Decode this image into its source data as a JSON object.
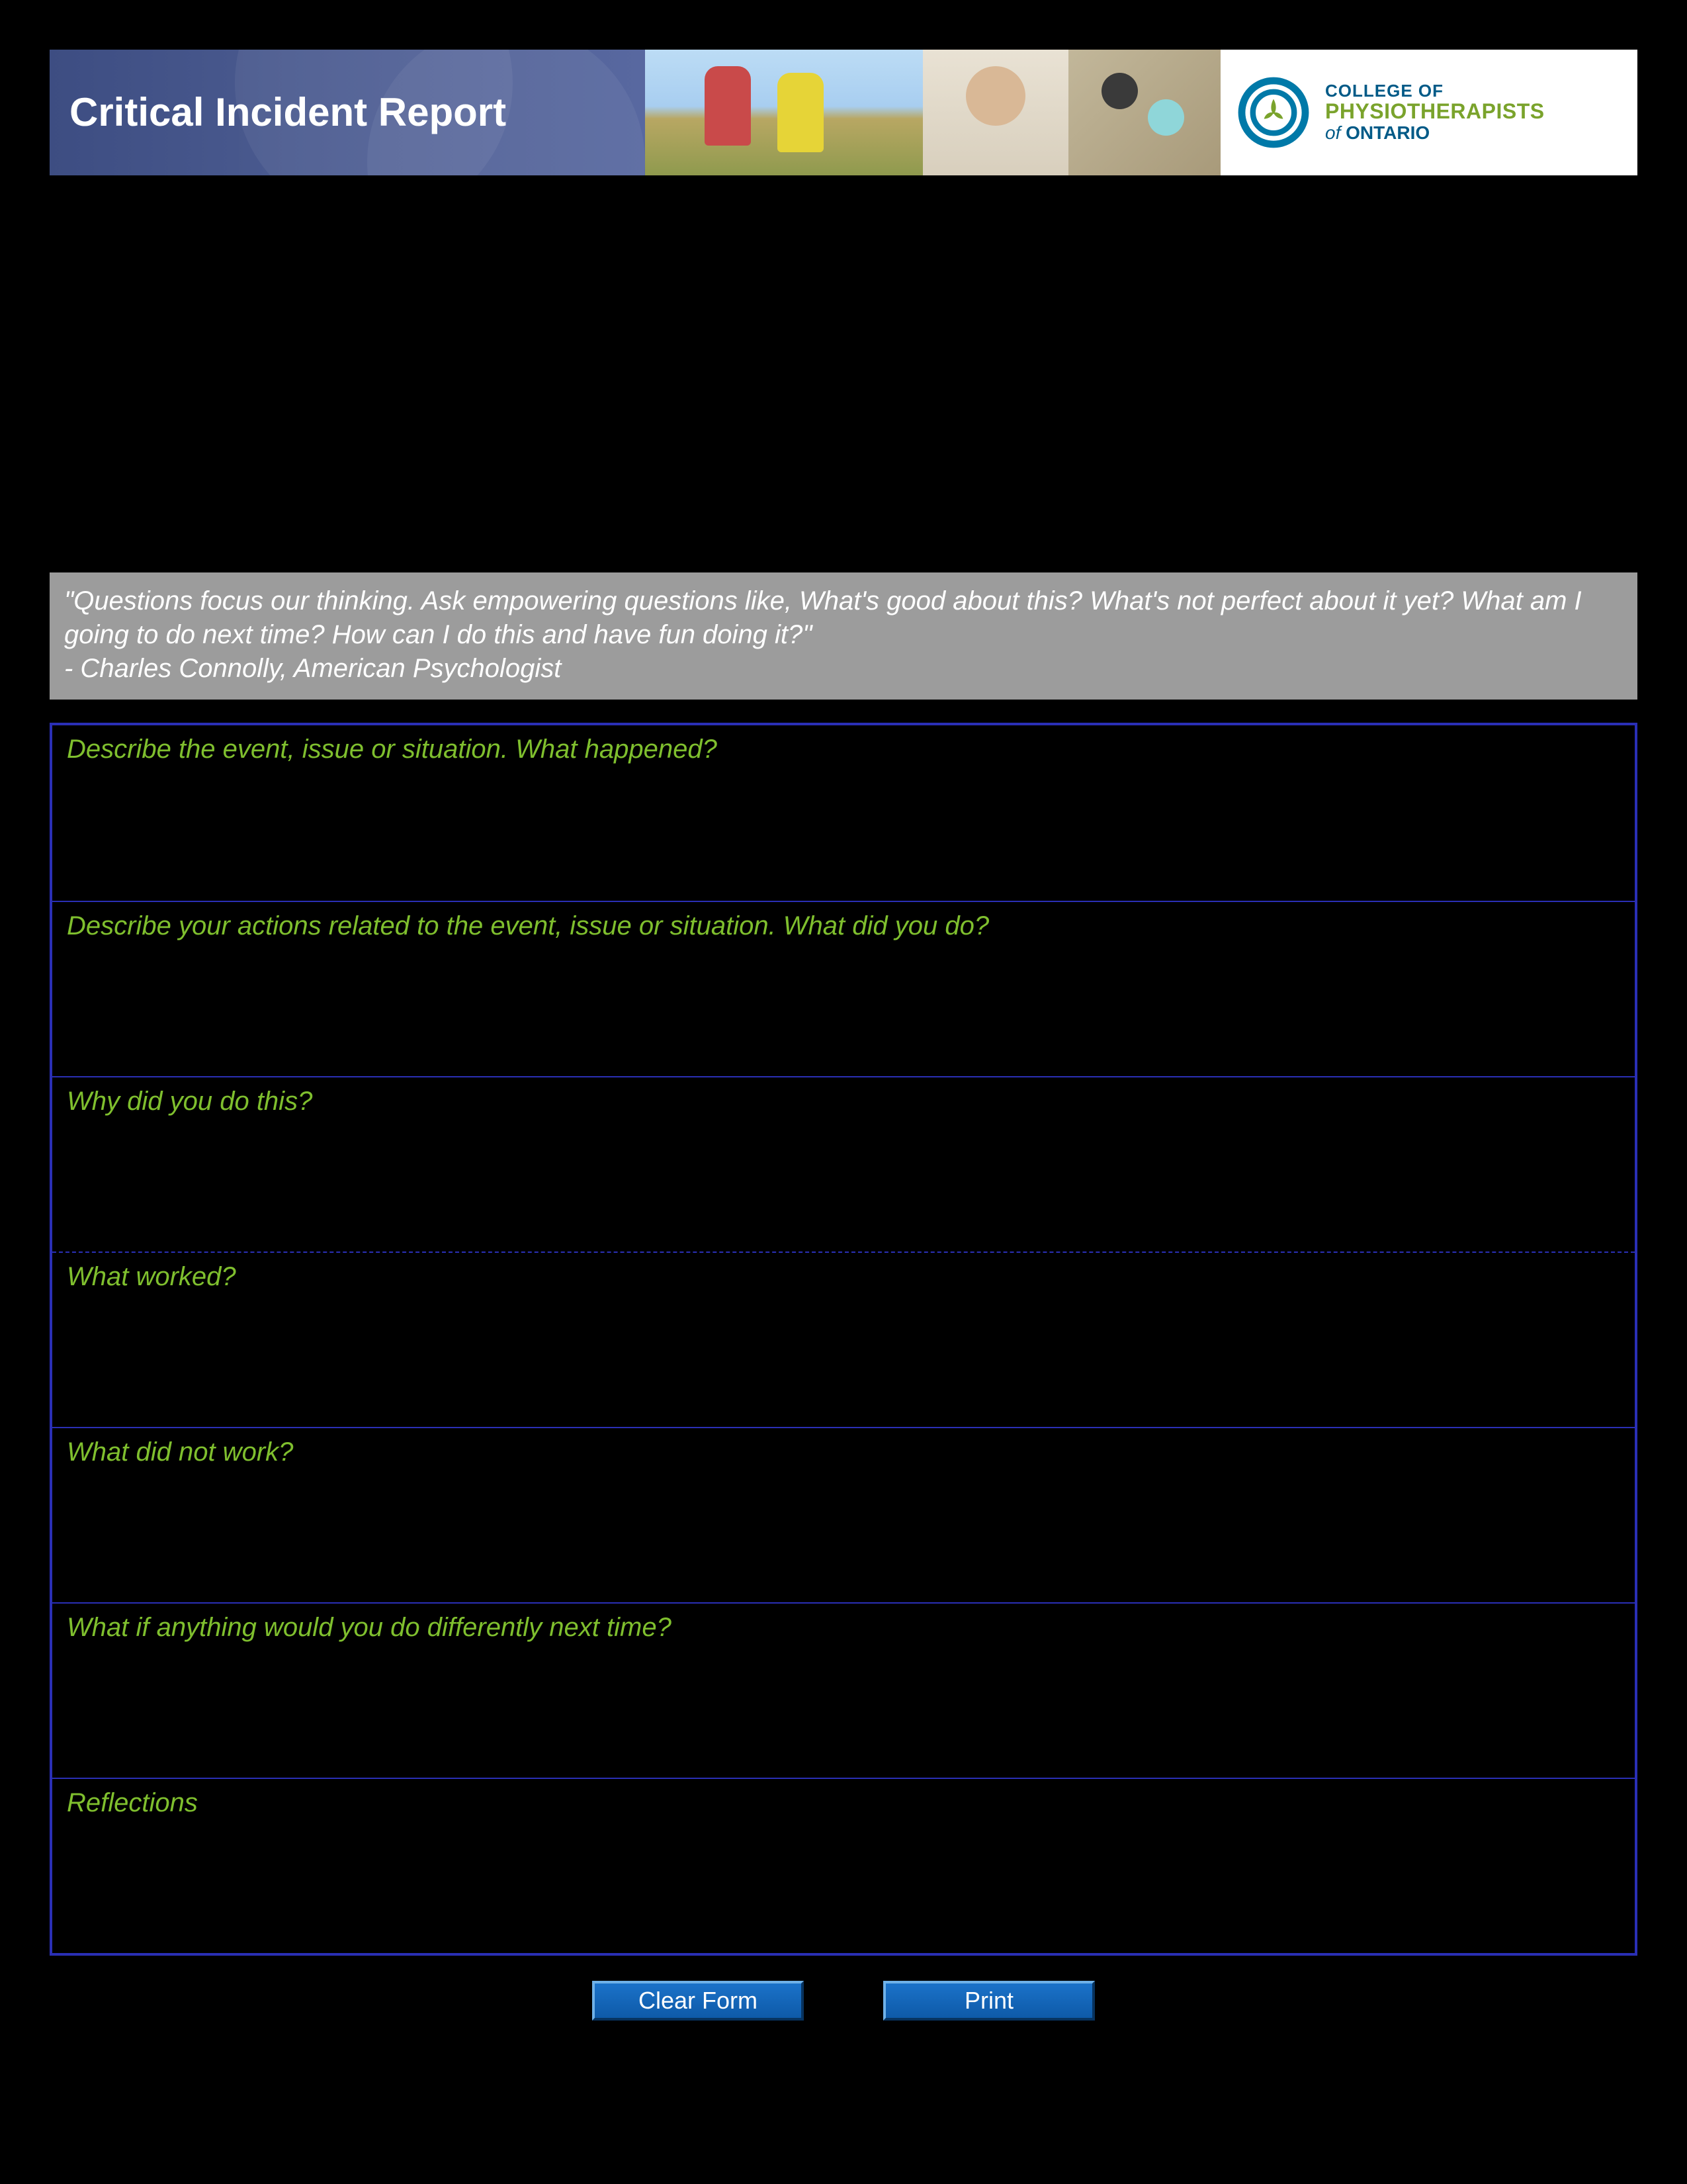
{
  "header": {
    "title": "Critical Incident Report",
    "banner_gradient_from": "#3d4d82",
    "banner_gradient_to": "#5868a0",
    "logo": {
      "line1": "COLLEGE OF",
      "line2": "PHYSIOTHERAPISTS",
      "line3_prefix": "of ",
      "line3_em": "ONTARIO",
      "ring_color": "#0079a8",
      "trillium_color": "#7aa32c"
    }
  },
  "quote": {
    "text": "\"Questions focus our thinking. Ask empowering questions like, What's good about this? What's not perfect about it yet? What am I going to do next time? How can I do this and have fun doing it?\"",
    "attribution": "- Charles Connolly, American Psychologist",
    "bg_color": "#9c9c9c",
    "text_color": "#ffffff"
  },
  "form": {
    "border_color": "#2a2fb5",
    "question_color": "#7fbf2e",
    "rows": [
      {
        "label": "Describe the event, issue or situation. What happened?",
        "dashed_top": false
      },
      {
        "label": "Describe your actions related to the event, issue or situation. What did you do?",
        "dashed_top": false
      },
      {
        "label": "Why did you do this?",
        "dashed_top": false
      },
      {
        "label": "What worked?",
        "dashed_top": true
      },
      {
        "label": "What did not work?",
        "dashed_top": false
      },
      {
        "label": "What if anything would you do differently next time?",
        "dashed_top": false
      },
      {
        "label": "Reflections",
        "dashed_top": false
      }
    ]
  },
  "buttons": {
    "clear": "Clear Form",
    "print": "Print",
    "bg_from": "#1b72c9",
    "bg_to": "#0e5aa8"
  }
}
